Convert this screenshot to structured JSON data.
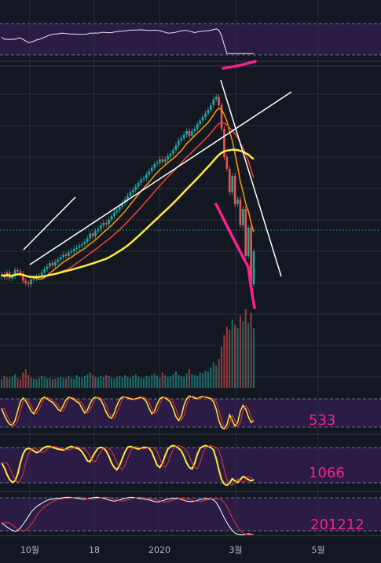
{
  "chart_data": {
    "type": "line",
    "title": "",
    "colors": {
      "background": "#131722",
      "oscillator_band": "#2a1c45",
      "grid": "#2a2e39",
      "candle_up": "#26a69a",
      "candle_down": "#ef5350",
      "ma_orange": "#ff9800",
      "ma_red": "#f44336",
      "ma_yellow": "#ffeb3b",
      "trendline": "#ffffff",
      "annotation": "#ff1f8e",
      "osc_fast": "#ffffff",
      "osc_signal": "#e53935",
      "osc_yellow": "#ffeb3b"
    },
    "x_tick_labels": [
      "10월",
      "18",
      "2020",
      "3월",
      "5월"
    ],
    "panel_labels": [
      "533",
      "1066",
      "201212"
    ],
    "price_series_close": [
      100.0,
      99.0,
      101.0,
      98.5,
      99.5,
      102.0,
      101.5,
      100.5,
      97.5,
      96.5,
      96.0,
      98.0,
      98.5,
      99.0,
      99.5,
      101.0,
      102.5,
      103.5,
      105.0,
      104.0,
      105.5,
      106.5,
      107.5,
      108.5,
      108.0,
      109.5,
      110.0,
      111.0,
      111.5,
      112.5,
      113.0,
      114.0,
      115.5,
      117.5,
      116.5,
      118.5,
      119.5,
      121.0,
      122.0,
      121.5,
      123.5,
      125.0,
      126.5,
      127.5,
      129.0,
      130.5,
      132.0,
      133.5,
      135.0,
      136.0,
      137.5,
      139.0,
      140.5,
      141.0,
      142.5,
      144.0,
      145.5,
      147.0,
      147.5,
      149.0,
      148.0,
      149.0,
      150.5,
      151.5,
      153.0,
      155.0,
      157.0,
      158.0,
      159.5,
      161.0,
      159.0,
      161.0,
      162.0,
      164.0,
      165.5,
      167.0,
      168.5,
      170.0,
      172.0,
      174.5,
      175.5,
      172.0,
      162.0,
      150.0,
      145.0,
      135.0,
      142.0,
      130.0,
      132.0,
      121.0,
      128.0,
      108.0,
      120.0,
      96.0,
      110.0
    ],
    "volume": [
      10,
      14,
      12,
      11,
      13,
      16,
      12,
      10,
      18,
      22,
      15,
      12,
      11,
      10,
      12,
      14,
      13,
      11,
      12,
      10,
      11,
      12,
      13,
      12,
      11,
      14,
      12,
      11,
      15,
      13,
      12,
      14,
      16,
      18,
      15,
      13,
      12,
      14,
      13,
      15,
      14,
      12,
      11,
      13,
      14,
      12,
      15,
      13,
      12,
      14,
      16,
      13,
      12,
      11,
      14,
      13,
      15,
      17,
      14,
      12,
      18,
      15,
      13,
      14,
      16,
      19,
      15,
      14,
      13,
      17,
      22,
      16,
      15,
      14,
      18,
      17,
      20,
      19,
      24,
      30,
      26,
      34,
      48,
      62,
      72,
      68,
      80,
      74,
      70,
      85,
      78,
      92,
      76,
      88,
      70
    ],
    "ylim_price": [
      85,
      185
    ],
    "osc_533": [
      62,
      45,
      30,
      20,
      18,
      30,
      55,
      80,
      90,
      82,
      70,
      55,
      48,
      60,
      75,
      88,
      92,
      88,
      82,
      78,
      70,
      60,
      55,
      70,
      85,
      92,
      90,
      86,
      80,
      76,
      62,
      50,
      58,
      75,
      88,
      92,
      90,
      84,
      70,
      52,
      40,
      36,
      50,
      70,
      86,
      93,
      92,
      90,
      88,
      86,
      88,
      90,
      92,
      88,
      80,
      62,
      48,
      55,
      74,
      88,
      92,
      90,
      85,
      78,
      60,
      40,
      30,
      42,
      70,
      88,
      95,
      93,
      90,
      88,
      92,
      94,
      92,
      90,
      88,
      80,
      60,
      30,
      12,
      8,
      20,
      45,
      30,
      15,
      25,
      55,
      70,
      60,
      40,
      25,
      30
    ],
    "osc_1066": [
      55,
      45,
      30,
      18,
      12,
      15,
      30,
      55,
      75,
      85,
      88,
      86,
      82,
      78,
      80,
      86,
      90,
      92,
      92,
      90,
      88,
      86,
      85,
      84,
      86,
      90,
      92,
      90,
      88,
      86,
      80,
      70,
      60,
      58,
      70,
      80,
      88,
      90,
      88,
      82,
      70,
      55,
      45,
      40,
      50,
      65,
      80,
      90,
      92,
      90,
      88,
      86,
      88,
      90,
      90,
      88,
      80,
      65,
      50,
      45,
      55,
      72,
      86,
      92,
      94,
      92,
      88,
      82,
      70,
      55,
      45,
      42,
      55,
      75,
      88,
      92,
      94,
      92,
      90,
      84,
      65,
      40,
      18,
      8,
      5,
      10,
      20,
      15,
      12,
      18,
      25,
      22,
      18,
      15,
      18
    ],
    "osc_201212": [
      30,
      25,
      20,
      16,
      12,
      10,
      12,
      18,
      26,
      35,
      45,
      55,
      62,
      68,
      72,
      76,
      80,
      83,
      85,
      86,
      87,
      88,
      88,
      89,
      90,
      90,
      90,
      89,
      88,
      87,
      86,
      86,
      87,
      88,
      89,
      90,
      90,
      89,
      88,
      86,
      84,
      82,
      81,
      82,
      84,
      86,
      88,
      89,
      90,
      90,
      89,
      88,
      87,
      86,
      85,
      84,
      82,
      80,
      79,
      80,
      82,
      84,
      86,
      87,
      88,
      88,
      87,
      85,
      83,
      81,
      80,
      80,
      81,
      83,
      85,
      86,
      87,
      87,
      86,
      84,
      78,
      68,
      55,
      42,
      30,
      20,
      12,
      6,
      3,
      2,
      2,
      3,
      4,
      3,
      3
    ]
  }
}
